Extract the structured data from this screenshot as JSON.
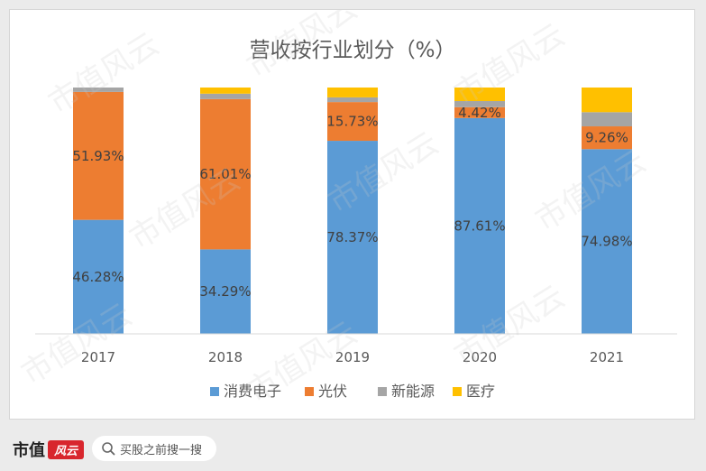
{
  "chart_data": {
    "type": "bar",
    "stacked": true,
    "title": "营收按行业划分（%）",
    "categories": [
      "2017",
      "2018",
      "2019",
      "2020",
      "2021"
    ],
    "series": [
      {
        "name": "消费电子",
        "color": "#5b9bd5",
        "values": [
          46.28,
          34.29,
          78.37,
          87.61,
          74.98
        ],
        "labels": [
          "46.28%",
          "34.29%",
          "78.37%",
          "87.61%",
          "74.98%"
        ]
      },
      {
        "name": "光伏",
        "color": "#ed7d31",
        "values": [
          51.93,
          61.01,
          15.73,
          4.42,
          9.26
        ],
        "labels": [
          "51.93%",
          "61.01%",
          "15.73%",
          "4.42%",
          "9.26%"
        ]
      },
      {
        "name": "新能源",
        "color": "#a5a5a5",
        "values": [
          1.79,
          2.2,
          1.9,
          2.47,
          5.76
        ],
        "labels": [
          "",
          "",
          "",
          "",
          ""
        ]
      },
      {
        "name": "医疗",
        "color": "#ffc000",
        "values": [
          0,
          2.5,
          4.0,
          5.5,
          10.0
        ],
        "labels": [
          "",
          "",
          "",
          "",
          ""
        ]
      }
    ],
    "ylim": [
      0,
      100
    ],
    "grid": false,
    "legend_position": "bottom"
  },
  "watermark": "市值风云",
  "footer": {
    "brand": "市值",
    "brand_seal": "风云",
    "search_placeholder": "买股之前搜一搜"
  }
}
